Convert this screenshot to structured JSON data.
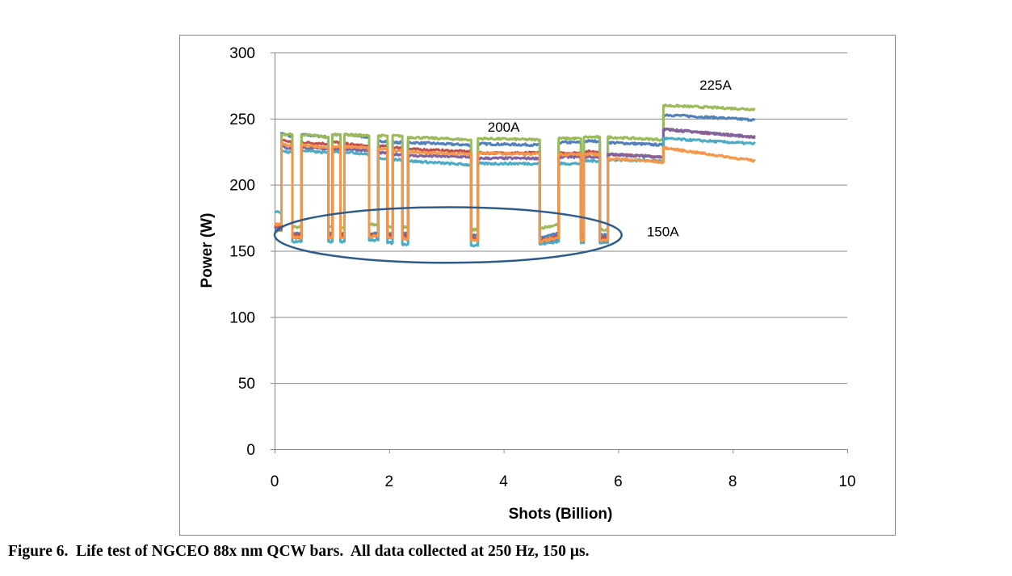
{
  "chart_data": {
    "type": "line",
    "title": "",
    "xlabel": "Shots (Billion)",
    "ylabel": "Power (W)",
    "xlim": [
      0,
      10
    ],
    "ylim": [
      0,
      300
    ],
    "xticks": [
      "0",
      "2",
      "4",
      "6",
      "8",
      "10"
    ],
    "yticks": [
      "0",
      "50",
      "100",
      "150",
      "200",
      "250",
      "300"
    ],
    "grid": "horizontal",
    "legend": "none",
    "segments_x": [
      [
        0,
        0.12
      ],
      [
        0.12,
        0.31
      ],
      [
        0.31,
        0.47
      ],
      [
        0.47,
        0.94
      ],
      [
        0.94,
        1.01
      ],
      [
        1.01,
        1.15
      ],
      [
        1.15,
        1.22
      ],
      [
        1.22,
        1.65
      ],
      [
        1.65,
        1.81
      ],
      [
        1.81,
        1.97
      ],
      [
        1.97,
        2.06
      ],
      [
        2.06,
        2.23
      ],
      [
        2.23,
        2.33
      ],
      [
        2.33,
        3.43
      ],
      [
        3.43,
        3.55
      ],
      [
        3.55,
        4.63
      ],
      [
        4.63,
        4.96
      ],
      [
        4.96,
        5.35
      ],
      [
        5.35,
        5.4
      ],
      [
        5.4,
        5.68
      ],
      [
        5.68,
        5.82
      ],
      [
        5.82,
        6.79
      ],
      [
        6.79,
        8.39
      ]
    ],
    "series": [
      {
        "color": "#4F81BD",
        "y": [
          [
            168,
            168
          ],
          [
            239,
            236
          ],
          [
            163,
            163
          ],
          [
            238,
            236
          ],
          [
            163,
            163
          ],
          [
            238,
            238
          ],
          [
            163,
            163
          ],
          [
            238,
            236
          ],
          [
            163,
            163
          ],
          [
            233,
            233
          ],
          [
            163,
            163
          ],
          [
            232,
            232
          ],
          [
            163,
            163
          ],
          [
            232,
            230
          ],
          [
            162,
            162
          ],
          [
            231,
            230
          ],
          [
            160,
            163
          ],
          [
            232,
            232
          ],
          [
            162,
            162
          ],
          [
            233,
            233
          ],
          [
            162,
            162
          ],
          [
            232,
            230
          ],
          [
            253,
            249
          ]
        ]
      },
      {
        "color": "#C0504D",
        "y": [
          [
            168,
            168
          ],
          [
            234,
            232
          ],
          [
            162,
            162
          ],
          [
            232,
            231
          ],
          [
            162,
            162
          ],
          [
            232,
            232
          ],
          [
            162,
            162
          ],
          [
            231,
            229
          ],
          [
            162,
            162
          ],
          [
            229,
            229
          ],
          [
            162,
            162
          ],
          [
            228,
            228
          ],
          [
            162,
            162
          ],
          [
            227,
            225
          ],
          [
            160,
            160
          ],
          [
            224,
            224
          ],
          [
            158,
            161
          ],
          [
            224,
            224
          ],
          [
            160,
            160
          ],
          [
            225,
            225
          ],
          [
            160,
            160
          ],
          [
            223,
            221
          ],
          [
            242,
            236
          ]
        ]
      },
      {
        "color": "#9BBB59",
        "y": [
          [
            165,
            165
          ],
          [
            238,
            238
          ],
          [
            168,
            168
          ],
          [
            238,
            236
          ],
          [
            168,
            168
          ],
          [
            238,
            238
          ],
          [
            168,
            168
          ],
          [
            238,
            237
          ],
          [
            170,
            170
          ],
          [
            237,
            237
          ],
          [
            168,
            168
          ],
          [
            237,
            237
          ],
          [
            168,
            168
          ],
          [
            236,
            234
          ],
          [
            166,
            166
          ],
          [
            235,
            234
          ],
          [
            167,
            170
          ],
          [
            235,
            235
          ],
          [
            166,
            166
          ],
          [
            236,
            236
          ],
          [
            166,
            166
          ],
          [
            236,
            234
          ],
          [
            260,
            257
          ]
        ]
      },
      {
        "color": "#8064A2",
        "y": [
          [
            166,
            166
          ],
          [
            229,
            227
          ],
          [
            160,
            160
          ],
          [
            228,
            227
          ],
          [
            160,
            160
          ],
          [
            227,
            227
          ],
          [
            160,
            160
          ],
          [
            227,
            226
          ],
          [
            161,
            161
          ],
          [
            224,
            224
          ],
          [
            160,
            160
          ],
          [
            223,
            223
          ],
          [
            160,
            160
          ],
          [
            222,
            221
          ],
          [
            158,
            158
          ],
          [
            220,
            220
          ],
          [
            156,
            158
          ],
          [
            221,
            221
          ],
          [
            158,
            158
          ],
          [
            221,
            221
          ],
          [
            158,
            158
          ],
          [
            223,
            221
          ],
          [
            242,
            236
          ]
        ]
      },
      {
        "color": "#4BACC6",
        "y": [
          [
            180,
            178
          ],
          [
            226,
            224
          ],
          [
            157,
            157
          ],
          [
            226,
            224
          ],
          [
            157,
            157
          ],
          [
            225,
            225
          ],
          [
            157,
            157
          ],
          [
            225,
            223
          ],
          [
            158,
            158
          ],
          [
            220,
            220
          ],
          [
            156,
            156
          ],
          [
            219,
            219
          ],
          [
            155,
            155
          ],
          [
            218,
            215
          ],
          [
            154,
            154
          ],
          [
            216,
            216
          ],
          [
            155,
            157
          ],
          [
            216,
            216
          ],
          [
            156,
            156
          ],
          [
            218,
            218
          ],
          [
            156,
            156
          ],
          [
            219,
            218
          ],
          [
            235,
            231
          ]
        ]
      },
      {
        "color": "#F79646",
        "y": [
          [
            170,
            170
          ],
          [
            231,
            229
          ],
          [
            160,
            160
          ],
          [
            230,
            228
          ],
          [
            160,
            160
          ],
          [
            229,
            229
          ],
          [
            160,
            160
          ],
          [
            229,
            228
          ],
          [
            161,
            161
          ],
          [
            227,
            227
          ],
          [
            160,
            160
          ],
          [
            226,
            226
          ],
          [
            159,
            159
          ],
          [
            225,
            223
          ],
          [
            158,
            158
          ],
          [
            224,
            223
          ],
          [
            157,
            160
          ],
          [
            223,
            223
          ],
          [
            158,
            158
          ],
          [
            223,
            223
          ],
          [
            158,
            158
          ],
          [
            220,
            217
          ],
          [
            228,
            218
          ]
        ]
      }
    ],
    "annotations": [
      {
        "text": "200A",
        "x": 4.0,
        "y": 240
      },
      {
        "text": "225A",
        "x": 7.7,
        "y": 272
      },
      {
        "text": "150A",
        "x": 6.5,
        "y": 161
      }
    ],
    "ellipse": {
      "cx": 3.03,
      "cy": 162,
      "rx": 3.03,
      "ry": 21,
      "color": "#2E5C8A"
    }
  },
  "caption": "Figure 6.  Life test of NGCEO 88x nm QCW bars.  All data collected at 250 Hz, 150 µs."
}
